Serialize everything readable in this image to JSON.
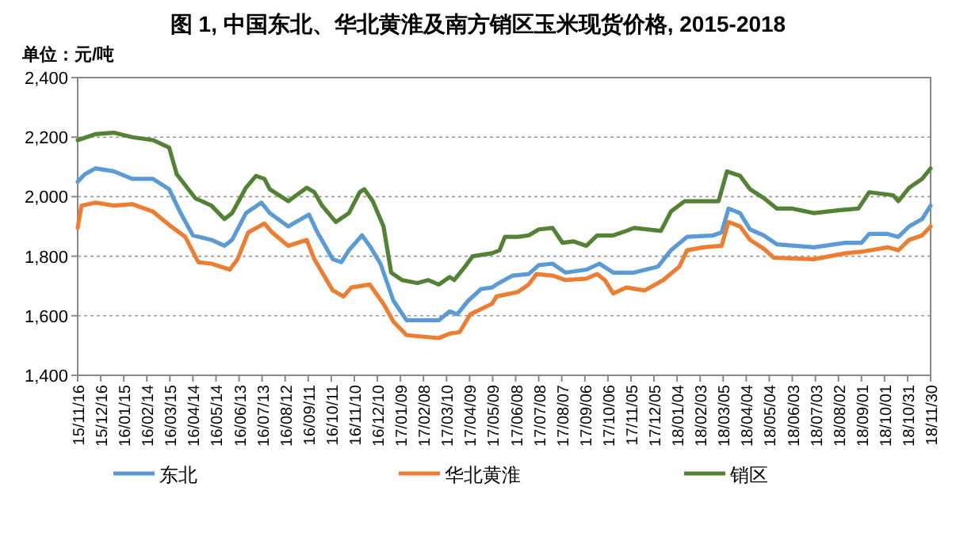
{
  "chart_data": {
    "type": "line",
    "title": "图 1, 中国东北、华北黄淮及南方销区玉米现货价格, 2015-2018",
    "ylabel": "单位：元/吨",
    "legend": "bottom",
    "grid": "y",
    "line_style": "solid",
    "marker": "none",
    "xlim": [
      "2015-11-16",
      "2018-11-30"
    ],
    "ylim": [
      1400,
      2400
    ],
    "yticks": [
      {
        "value": 1400,
        "label": "1,400"
      },
      {
        "value": 1600,
        "label": "1,600"
      },
      {
        "value": 1800,
        "label": "1,800"
      },
      {
        "value": 2000,
        "label": "2,000"
      },
      {
        "value": 2200,
        "label": "2,200"
      },
      {
        "value": 2400,
        "label": "2,400"
      }
    ],
    "xticks": [
      {
        "value": "2015-11-16",
        "label": "15/11/16"
      },
      {
        "value": "2015-12-16",
        "label": "15/12/16"
      },
      {
        "value": "2016-01-15",
        "label": "16/01/15"
      },
      {
        "value": "2016-02-14",
        "label": "16/02/14"
      },
      {
        "value": "2016-03-15",
        "label": "16/03/15"
      },
      {
        "value": "2016-04-14",
        "label": "16/04/14"
      },
      {
        "value": "2016-05-14",
        "label": "16/05/14"
      },
      {
        "value": "2016-06-13",
        "label": "16/06/13"
      },
      {
        "value": "2016-07-13",
        "label": "16/07/13"
      },
      {
        "value": "2016-08-12",
        "label": "16/08/12"
      },
      {
        "value": "2016-09-11",
        "label": "16/09/11"
      },
      {
        "value": "2016-10-11",
        "label": "16/10/11"
      },
      {
        "value": "2016-11-10",
        "label": "16/11/10"
      },
      {
        "value": "2016-12-10",
        "label": "16/12/10"
      },
      {
        "value": "2017-01-09",
        "label": "17/01/09"
      },
      {
        "value": "2017-02-08",
        "label": "17/02/08"
      },
      {
        "value": "2017-03-10",
        "label": "17/03/10"
      },
      {
        "value": "2017-04-09",
        "label": "17/04/09"
      },
      {
        "value": "2017-05-09",
        "label": "17/05/09"
      },
      {
        "value": "2017-06-08",
        "label": "17/06/08"
      },
      {
        "value": "2017-07-08",
        "label": "17/07/08"
      },
      {
        "value": "2017-08-07",
        "label": "17/08/07"
      },
      {
        "value": "2017-09-06",
        "label": "17/09/06"
      },
      {
        "value": "2017-10-06",
        "label": "17/10/06"
      },
      {
        "value": "2017-11-05",
        "label": "17/11/05"
      },
      {
        "value": "2017-12-05",
        "label": "17/12/05"
      },
      {
        "value": "2018-01-04",
        "label": "18/01/04"
      },
      {
        "value": "2018-02-03",
        "label": "18/02/03"
      },
      {
        "value": "2018-03-05",
        "label": "18/03/05"
      },
      {
        "value": "2018-04-04",
        "label": "18/04/04"
      },
      {
        "value": "2018-05-04",
        "label": "18/05/04"
      },
      {
        "value": "2018-06-03",
        "label": "18/06/03"
      },
      {
        "value": "2018-07-03",
        "label": "18/07/03"
      },
      {
        "value": "2018-08-02",
        "label": "18/08/02"
      },
      {
        "value": "2018-09-01",
        "label": "18/09/01"
      },
      {
        "value": "2018-10-01",
        "label": "18/10/01"
      },
      {
        "value": "2018-10-31",
        "label": "18/10/31"
      },
      {
        "value": "2018-11-30",
        "label": "18/11/30"
      }
    ],
    "series": [
      {
        "name": "东北",
        "color": "#5b9bd5",
        "x": [
          "2015-11-16",
          "2015-11-25",
          "2015-12-09",
          "2016-01-02",
          "2016-01-26",
          "2016-02-22",
          "2016-03-14",
          "2016-03-28",
          "2016-04-14",
          "2016-05-08",
          "2016-05-25",
          "2016-06-04",
          "2016-06-22",
          "2016-07-12",
          "2016-07-23",
          "2016-08-16",
          "2016-09-12",
          "2016-09-23",
          "2016-10-13",
          "2016-10-24",
          "2016-11-03",
          "2016-11-20",
          "2016-11-30",
          "2016-12-14",
          "2016-12-31",
          "2017-01-17",
          "2017-02-07",
          "2017-02-28",
          "2017-03-14",
          "2017-03-24",
          "2017-04-07",
          "2017-04-24",
          "2017-05-08",
          "2017-05-14",
          "2017-06-04",
          "2017-06-25",
          "2017-07-08",
          "2017-07-26",
          "2017-08-12",
          "2017-09-08",
          "2017-09-25",
          "2017-10-13",
          "2017-11-09",
          "2017-12-10",
          "2017-12-27",
          "2018-01-17",
          "2018-02-20",
          "2018-03-03",
          "2018-03-12",
          "2018-03-27",
          "2018-04-09",
          "2018-04-27",
          "2018-05-14",
          "2018-07-01",
          "2018-08-11",
          "2018-09-01",
          "2018-09-11",
          "2018-10-05",
          "2018-10-19",
          "2018-11-02",
          "2018-11-19",
          "2018-11-30"
        ],
        "values": [
          2050,
          2075,
          2095,
          2085,
          2060,
          2060,
          2025,
          1950,
          1870,
          1855,
          1835,
          1855,
          1945,
          1980,
          1945,
          1900,
          1940,
          1880,
          1790,
          1780,
          1820,
          1870,
          1835,
          1775,
          1650,
          1585,
          1585,
          1585,
          1615,
          1605,
          1650,
          1690,
          1695,
          1705,
          1735,
          1740,
          1770,
          1775,
          1745,
          1755,
          1775,
          1745,
          1745,
          1765,
          1820,
          1865,
          1870,
          1880,
          1960,
          1945,
          1890,
          1870,
          1840,
          1830,
          1845,
          1845,
          1875,
          1875,
          1865,
          1900,
          1925,
          1970
        ]
      },
      {
        "name": "华北黄淮",
        "color": "#ed7d31",
        "x": [
          "2015-11-16",
          "2015-11-21",
          "2015-12-09",
          "2016-01-02",
          "2016-01-26",
          "2016-02-22",
          "2016-03-14",
          "2016-04-04",
          "2016-04-21",
          "2016-05-08",
          "2016-06-01",
          "2016-06-11",
          "2016-06-25",
          "2016-07-16",
          "2016-07-26",
          "2016-08-16",
          "2016-09-09",
          "2016-09-19",
          "2016-10-13",
          "2016-10-27",
          "2016-11-06",
          "2016-11-30",
          "2016-12-18",
          "2016-12-31",
          "2017-01-17",
          "2017-02-28",
          "2017-03-14",
          "2017-03-27",
          "2017-04-10",
          "2017-05-08",
          "2017-05-14",
          "2017-06-11",
          "2017-06-25",
          "2017-07-05",
          "2017-07-26",
          "2017-08-12",
          "2017-09-08",
          "2017-09-22",
          "2017-10-02",
          "2017-10-13",
          "2017-10-30",
          "2017-11-23",
          "2017-12-17",
          "2018-01-07",
          "2018-01-17",
          "2018-02-07",
          "2018-03-03",
          "2018-03-12",
          "2018-03-27",
          "2018-04-09",
          "2018-04-27",
          "2018-05-10",
          "2018-07-01",
          "2018-08-11",
          "2018-09-01",
          "2018-10-05",
          "2018-10-19",
          "2018-11-02",
          "2018-11-19",
          "2018-11-30"
        ],
        "values": [
          1895,
          1970,
          1980,
          1970,
          1975,
          1950,
          1905,
          1865,
          1780,
          1775,
          1755,
          1790,
          1880,
          1910,
          1880,
          1835,
          1855,
          1790,
          1685,
          1665,
          1695,
          1705,
          1640,
          1580,
          1535,
          1525,
          1540,
          1545,
          1605,
          1640,
          1665,
          1680,
          1705,
          1740,
          1735,
          1720,
          1725,
          1740,
          1720,
          1675,
          1695,
          1685,
          1720,
          1765,
          1820,
          1830,
          1835,
          1915,
          1900,
          1855,
          1825,
          1795,
          1790,
          1810,
          1815,
          1830,
          1820,
          1855,
          1870,
          1900
        ]
      },
      {
        "name": "销区",
        "color": "#548235",
        "x": [
          "2015-11-16",
          "2015-12-09",
          "2016-01-02",
          "2016-01-26",
          "2016-02-22",
          "2016-03-14",
          "2016-03-24",
          "2016-04-17",
          "2016-05-08",
          "2016-05-25",
          "2016-06-04",
          "2016-06-22",
          "2016-07-05",
          "2016-07-16",
          "2016-07-23",
          "2016-08-16",
          "2016-09-09",
          "2016-09-19",
          "2016-09-29",
          "2016-10-17",
          "2016-11-03",
          "2016-11-17",
          "2016-11-23",
          "2016-12-04",
          "2016-12-18",
          "2016-12-28",
          "2017-01-11",
          "2017-01-31",
          "2017-02-14",
          "2017-02-28",
          "2017-03-14",
          "2017-03-20",
          "2017-04-03",
          "2017-04-13",
          "2017-05-08",
          "2017-05-18",
          "2017-05-25",
          "2017-06-11",
          "2017-06-25",
          "2017-07-08",
          "2017-07-26",
          "2017-08-08",
          "2017-08-22",
          "2017-09-08",
          "2017-09-22",
          "2017-10-13",
          "2017-10-30",
          "2017-11-09",
          "2017-12-14",
          "2017-12-27",
          "2018-01-14",
          "2018-02-13",
          "2018-02-27",
          "2018-03-10",
          "2018-03-27",
          "2018-04-09",
          "2018-04-27",
          "2018-05-14",
          "2018-06-03",
          "2018-07-01",
          "2018-08-04",
          "2018-08-28",
          "2018-09-11",
          "2018-10-12",
          "2018-10-19",
          "2018-11-02",
          "2018-11-19",
          "2018-11-30"
        ],
        "values": [
          2190,
          2210,
          2215,
          2200,
          2190,
          2165,
          2075,
          1995,
          1970,
          1925,
          1945,
          2030,
          2070,
          2060,
          2025,
          1985,
          2030,
          2015,
          1970,
          1915,
          1945,
          2015,
          2025,
          1985,
          1900,
          1745,
          1720,
          1710,
          1720,
          1705,
          1730,
          1720,
          1765,
          1800,
          1810,
          1820,
          1865,
          1865,
          1870,
          1890,
          1895,
          1845,
          1850,
          1835,
          1870,
          1870,
          1885,
          1895,
          1885,
          1950,
          1985,
          1985,
          1985,
          2085,
          2070,
          2025,
          1995,
          1960,
          1960,
          1945,
          1955,
          1960,
          2015,
          2005,
          1985,
          2030,
          2060,
          2095
        ]
      }
    ]
  }
}
